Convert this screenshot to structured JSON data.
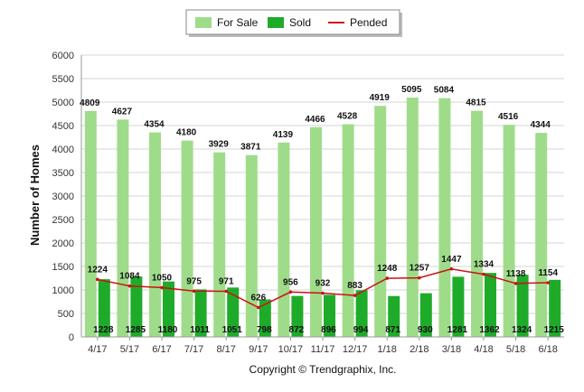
{
  "chart_data": {
    "type": "bar",
    "title": "",
    "xlabel": "",
    "ylabel": "Number of Homes",
    "ylim": [
      0,
      6000
    ],
    "yticks": [
      0,
      500,
      1000,
      1500,
      2000,
      2500,
      3000,
      3500,
      4000,
      4500,
      5000,
      5500,
      6000
    ],
    "grid": true,
    "legend_position": "top-center",
    "categories": [
      "4/17",
      "5/17",
      "6/17",
      "7/17",
      "8/17",
      "9/17",
      "10/17",
      "11/17",
      "12/17",
      "1/18",
      "2/18",
      "3/18",
      "4/18",
      "5/18",
      "6/18"
    ],
    "series": [
      {
        "name": "For Sale",
        "type": "bar",
        "color": "#9fdc8a",
        "values": [
          4809,
          4627,
          4354,
          4180,
          3929,
          3871,
          4139,
          4466,
          4528,
          4919,
          5095,
          5084,
          4815,
          4516,
          4344
        ]
      },
      {
        "name": "Sold",
        "type": "bar",
        "color": "#1fab2a",
        "values": [
          1228,
          1285,
          1180,
          1011,
          1051,
          798,
          872,
          896,
          994,
          871,
          930,
          1281,
          1362,
          1324,
          1215
        ]
      },
      {
        "name": "Pended",
        "type": "line",
        "color": "#cc1111",
        "values": [
          1224,
          1084,
          1050,
          975,
          971,
          626,
          956,
          932,
          883,
          1248,
          1257,
          1447,
          1334,
          1138,
          1154
        ]
      }
    ],
    "annotations": [
      "Copyright © Trendgraphix, Inc."
    ]
  }
}
